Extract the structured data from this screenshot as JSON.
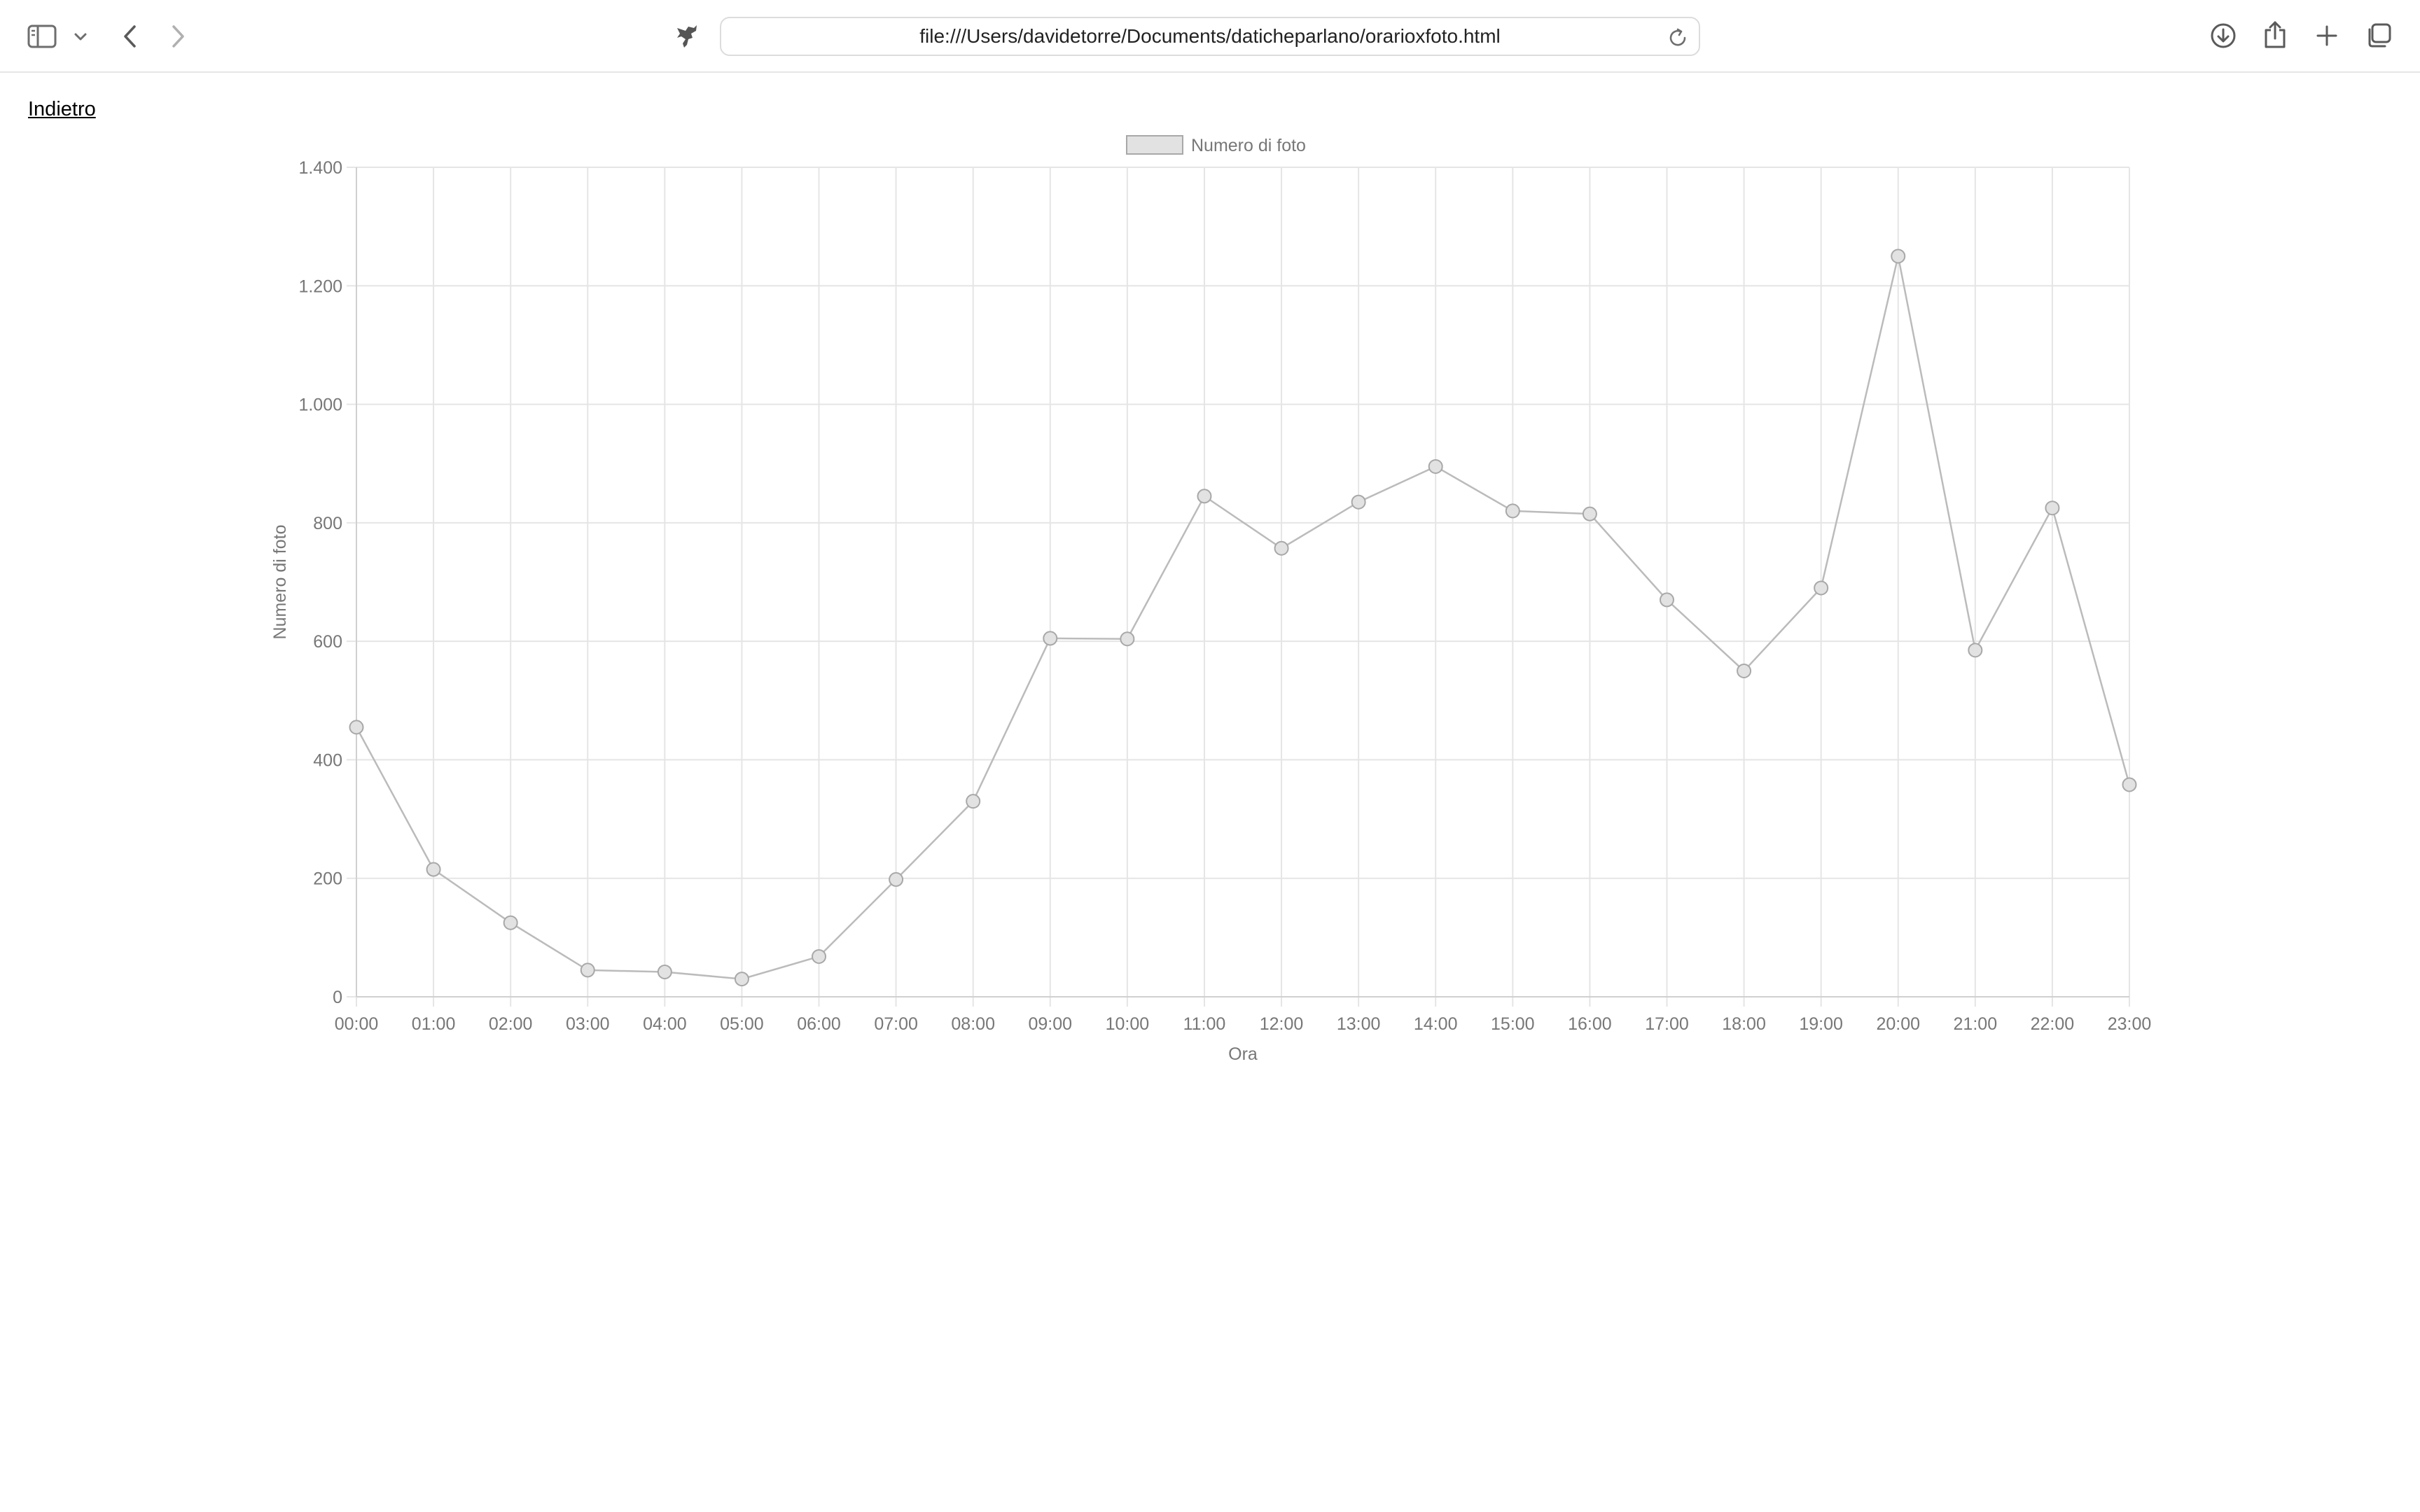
{
  "browser": {
    "url": "file:///Users/davidetorre/Documents/daticheparlano/orarioxfoto.html"
  },
  "page": {
    "back_link": "Indietro"
  },
  "chart_data": {
    "type": "line",
    "categories": [
      "00:00",
      "01:00",
      "02:00",
      "03:00",
      "04:00",
      "05:00",
      "06:00",
      "07:00",
      "08:00",
      "09:00",
      "10:00",
      "11:00",
      "12:00",
      "13:00",
      "14:00",
      "15:00",
      "16:00",
      "17:00",
      "18:00",
      "19:00",
      "20:00",
      "21:00",
      "22:00",
      "23:00"
    ],
    "series": [
      {
        "name": "Numero di foto",
        "values": [
          455,
          215,
          125,
          45,
          42,
          30,
          68,
          198,
          330,
          605,
          604,
          845,
          757,
          835,
          895,
          820,
          815,
          670,
          550,
          690,
          1250,
          585,
          825,
          358
        ]
      }
    ],
    "xlabel": "Ora",
    "ylabel": "Numero di foto",
    "ylim": [
      0,
      1400
    ],
    "yticks": [
      0,
      200,
      400,
      600,
      800,
      1000,
      1200,
      1400
    ],
    "ytick_labels": [
      "0",
      "200",
      "400",
      "600",
      "800",
      "1.000",
      "1.200",
      "1.400"
    ],
    "grid": true,
    "legend": "top-center",
    "colors": {
      "line": "#bbbbbb",
      "point_fill": "#e2e2e2",
      "point_stroke": "#a8a8a8",
      "grid": "#e5e5e5",
      "text": "#777777"
    }
  }
}
